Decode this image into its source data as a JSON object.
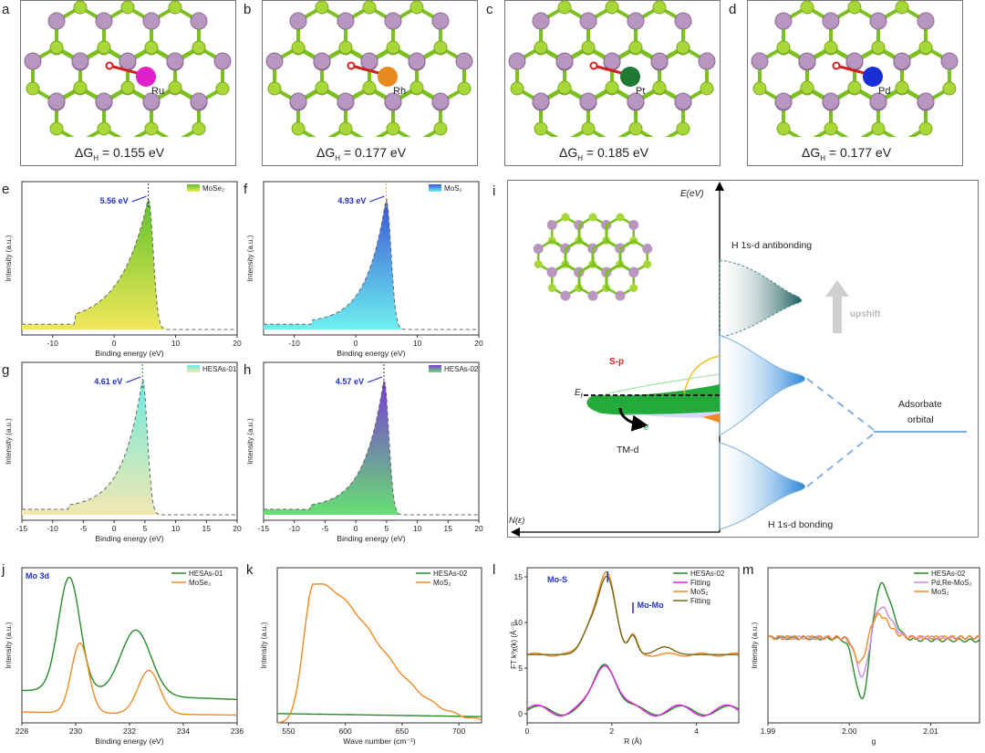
{
  "panels": {
    "a": {
      "letter": "a",
      "metal": "Ru",
      "dg": "0.155 eV",
      "color": "#e020c8"
    },
    "b": {
      "letter": "b",
      "metal": "Rh",
      "dg": "0.177 eV",
      "color": "#e88a20"
    },
    "c": {
      "letter": "c",
      "metal": "Pt",
      "dg": "0.185 eV",
      "color": "#1e7a32"
    },
    "d": {
      "letter": "d",
      "metal": "Pd",
      "dg": "0.177 eV",
      "color": "#1a2ed6"
    }
  },
  "dg_prefix": "ΔG",
  "dg_sub": "H",
  "dg_eq": " = ",
  "chart_data": [
    {
      "letter": "e",
      "type": "area",
      "legend": "MoSe₂",
      "peak_label": "5.56 eV",
      "peak_x": 5.56,
      "xlim": [
        -15,
        20
      ],
      "xticks": [
        "-10",
        "0",
        "10",
        "20"
      ],
      "xlabel": "Binding energy (eV)",
      "ylabel": "Intensity (a.u.)",
      "colors": [
        "#f2e85a",
        "#5ec22c"
      ]
    },
    {
      "letter": "f",
      "type": "area",
      "legend": "MoS₂",
      "peak_label": "4.93 eV",
      "peak_x": 4.93,
      "xlim": [
        -15,
        20
      ],
      "xticks": [
        "-10",
        "0",
        "10",
        "20"
      ],
      "xlabel": "Binding energy (eV)",
      "ylabel": "Intensity (a.u.)",
      "colors": [
        "#6ef0f0",
        "#3a52d8"
      ]
    },
    {
      "letter": "g",
      "type": "area",
      "legend": "HESAs-01",
      "peak_label": "4.61 eV",
      "peak_x": 4.61,
      "xlim": [
        -15,
        20
      ],
      "xticks": [
        "-15",
        "-10",
        "-5",
        "0",
        "5",
        "10",
        "15",
        "20"
      ],
      "xlabel": "Binding energy (eV)",
      "ylabel": "Intensity (a.u.)",
      "colors": [
        "#f2e8b0",
        "#6eeae0"
      ]
    },
    {
      "letter": "h",
      "type": "area",
      "legend": "HESAs-02",
      "peak_label": "4.57 eV",
      "peak_x": 4.57,
      "xlim": [
        -15,
        20
      ],
      "xticks": [
        "-15",
        "-10",
        "-5",
        "0",
        "5",
        "10",
        "15",
        "20"
      ],
      "xlabel": "Binding energy (eV)",
      "ylabel": "Intensity (a.u.)",
      "colors": [
        "#66e070",
        "#7a3ad8"
      ]
    },
    {
      "letter": "j",
      "type": "line",
      "inset": "Mo 3d",
      "xlim": [
        228,
        236
      ],
      "xticks": [
        "228",
        "230",
        "232",
        "234",
        "236"
      ],
      "xlabel": "Binding energy (eV)",
      "ylabel": "Intensity (a.u.)",
      "series": [
        {
          "name": "HESAs-01",
          "color": "#2a8a2a"
        },
        {
          "name": "MoSe₂",
          "color": "#f08a24"
        }
      ]
    },
    {
      "letter": "k",
      "type": "line",
      "xlim": [
        540,
        720
      ],
      "xticks": [
        "550",
        "600",
        "650",
        "700"
      ],
      "xlabel": "Wave number (cm⁻¹)",
      "ylabel": "Intensity (a.u.)",
      "series": [
        {
          "name": "HESAs-02",
          "color": "#2a8a2a"
        },
        {
          "name": "MoS₂",
          "color": "#f08a24"
        }
      ]
    },
    {
      "letter": "l",
      "type": "line",
      "xlim": [
        0,
        5
      ],
      "ylim": [
        -1,
        16
      ],
      "xticks": [
        "0",
        "2",
        "4"
      ],
      "yticks": [
        "0",
        "5",
        "10",
        "15"
      ],
      "xlabel": "R (Å)",
      "ylabel": "FT k³χ(k) (Å⁻³)",
      "annotations": [
        "Mo-S",
        "Mo-Mo"
      ],
      "series": [
        {
          "name": "HESAs-02",
          "color": "#2a8a2a"
        },
        {
          "name": "Fitting",
          "color": "#e020e0"
        },
        {
          "name": "MoS₂",
          "color": "#f08a24"
        },
        {
          "name": "Fitting",
          "color": "#6e6a1a"
        }
      ]
    },
    {
      "letter": "m",
      "type": "line",
      "xlim": [
        1.99,
        2.016
      ],
      "xticks": [
        "1.99",
        "2.00",
        "2.01"
      ],
      "xlabel": "g",
      "ylabel": "Intensity (a.u.)",
      "series": [
        {
          "name": "HESAs-02",
          "color": "#2a8a2a"
        },
        {
          "name": "Pd,Re-MoS₂",
          "color": "#c88ae8"
        },
        {
          "name": "MoS₂",
          "color": "#f08a24"
        }
      ]
    }
  ],
  "diagram_i": {
    "letter": "i",
    "yaxis": "E(eV)",
    "xaxis": "N(ε)",
    "antibonding": "H 1s-d antibonding",
    "bonding": "H 1s-d bonding",
    "upshift": "upshift",
    "sp": "S-p",
    "tmd": "TM-d",
    "ef": "E",
    "ef_sub": "f",
    "e": "e",
    "adsorbate1": "Adsorbate",
    "adsorbate2": "orbital"
  }
}
